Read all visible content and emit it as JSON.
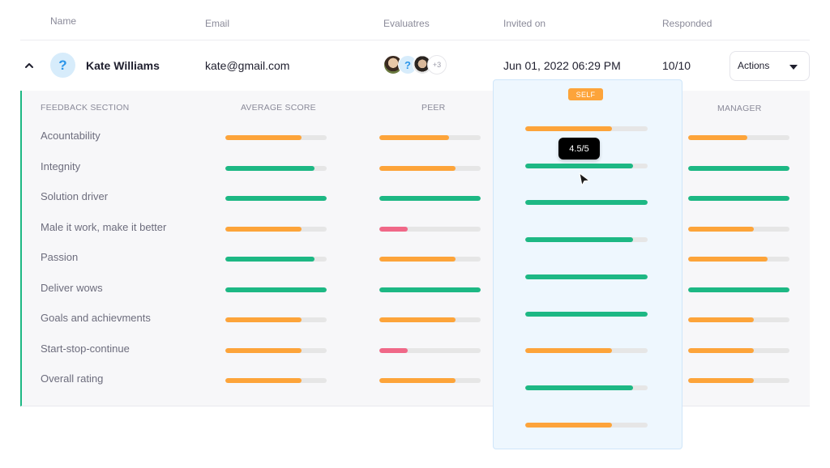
{
  "table": {
    "headers": {
      "name": "Name",
      "email": "Email",
      "evaluators": "Evaluatres",
      "invited_on": "Invited on",
      "responded": "Responded"
    },
    "row": {
      "avatar_glyph": "?",
      "name": "Kate Williams",
      "email": "kate@gmail.com",
      "evaluators": {
        "avatars": [
          "photo-woman-1",
          "?",
          "photo-woman-2"
        ],
        "more": "+3"
      },
      "invited_on": "Jun 01, 2022 06:29 PM",
      "responded": "10/10",
      "actions_label": "Actions",
      "expanded": true
    }
  },
  "detail": {
    "headers": {
      "section": "FEEDBACK SECTION",
      "average": "AVERAGE SCORE",
      "peer": "PEER",
      "self": "SELF",
      "manager": "MANAGER"
    },
    "tooltip": "4.5/5",
    "colors": {
      "high": "#1db884",
      "mid": "#fda43a",
      "low": "#f06888",
      "track": "#e6e6e6",
      "accent_border": "#1db884"
    },
    "rows": [
      {
        "label": "Acountability",
        "average": {
          "pct": 75,
          "level": "mid"
        },
        "peer": {
          "pct": 69,
          "level": "mid"
        },
        "self": {
          "pct": 71,
          "level": "mid"
        },
        "manager": {
          "pct": 58,
          "level": "mid"
        }
      },
      {
        "label": "Integnity",
        "average": {
          "pct": 88,
          "level": "high"
        },
        "peer": {
          "pct": 75,
          "level": "mid"
        },
        "self": {
          "pct": 88,
          "level": "high"
        },
        "manager": {
          "pct": 100,
          "level": "high"
        }
      },
      {
        "label": "Solution driver",
        "average": {
          "pct": 100,
          "level": "high"
        },
        "peer": {
          "pct": 100,
          "level": "high"
        },
        "self": {
          "pct": 100,
          "level": "high"
        },
        "manager": {
          "pct": 100,
          "level": "high"
        }
      },
      {
        "label": "Male it work, make it better",
        "average": {
          "pct": 75,
          "level": "mid"
        },
        "peer": {
          "pct": 28,
          "level": "low"
        },
        "self": {
          "pct": 88,
          "level": "high"
        },
        "manager": {
          "pct": 65,
          "level": "mid"
        }
      },
      {
        "label": "Passion",
        "average": {
          "pct": 88,
          "level": "high"
        },
        "peer": {
          "pct": 75,
          "level": "mid"
        },
        "self": {
          "pct": 100,
          "level": "high"
        },
        "manager": {
          "pct": 78,
          "level": "mid"
        }
      },
      {
        "label": "Deliver wows",
        "average": {
          "pct": 100,
          "level": "high"
        },
        "peer": {
          "pct": 100,
          "level": "high"
        },
        "self": {
          "pct": 100,
          "level": "high"
        },
        "manager": {
          "pct": 100,
          "level": "high"
        }
      },
      {
        "label": "Goals and achievments",
        "average": {
          "pct": 75,
          "level": "mid"
        },
        "peer": {
          "pct": 75,
          "level": "mid"
        },
        "self": {
          "pct": 71,
          "level": "mid"
        },
        "manager": {
          "pct": 65,
          "level": "mid"
        }
      },
      {
        "label": "Start-stop-continue",
        "average": {
          "pct": 75,
          "level": "mid"
        },
        "peer": {
          "pct": 28,
          "level": "low"
        },
        "self": {
          "pct": 88,
          "level": "high"
        },
        "manager": {
          "pct": 65,
          "level": "mid"
        }
      },
      {
        "label": "Overall rating",
        "average": {
          "pct": 75,
          "level": "mid"
        },
        "peer": {
          "pct": 75,
          "level": "mid"
        },
        "self": {
          "pct": 71,
          "level": "mid"
        },
        "manager": {
          "pct": 65,
          "level": "mid"
        }
      }
    ]
  }
}
